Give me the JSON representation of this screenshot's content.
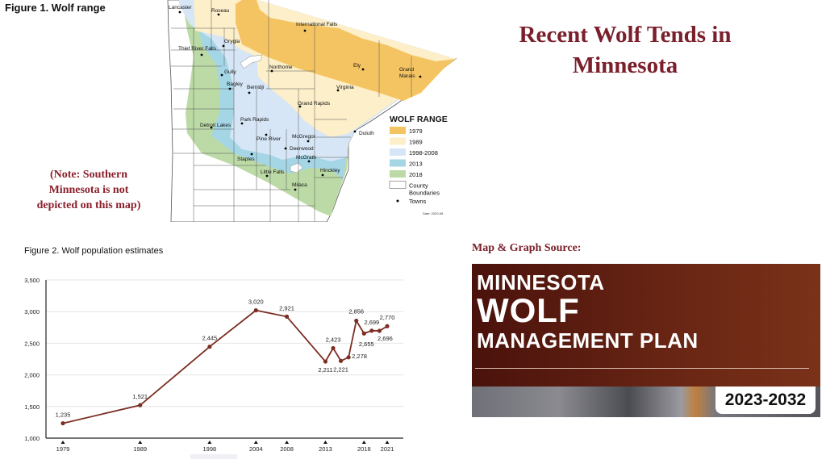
{
  "slide": {
    "title": "Recent Wolf Tends in Minnesota",
    "title_line1": "Recent Wolf Tends in",
    "title_line2": "Minnesota",
    "title_color": "#7a1f2b",
    "note_line1": "(Note: Southern",
    "note_line2": "Minnesota is not",
    "note_line3": "depicted on this map)",
    "source_label": "Map & Graph Source:"
  },
  "figure1": {
    "title": "Figure 1. Wolf range",
    "legend_title": "WOLF RANGE",
    "legend": [
      {
        "label": "1979",
        "color": "#f5c462"
      },
      {
        "label": "1989",
        "color": "#fcefc9"
      },
      {
        "label": "1998-2008",
        "color": "#d6e6f6"
      },
      {
        "label": "2013",
        "color": "#a4d6e6"
      },
      {
        "label": "2018",
        "color": "#bcdaa6"
      },
      {
        "label": "County",
        "label2": "Boundaries",
        "color": "#ffffff"
      },
      {
        "label": "Towns",
        "color": "#000000"
      }
    ],
    "date": "Date: 2020-08",
    "towns": [
      "Lancaster",
      "Roseau",
      "International Falls",
      "Grygla",
      "Thief River Falls",
      "Northome",
      "Ely",
      "Grand",
      "Gully",
      "Bagley",
      "Bemidji",
      "Virginia",
      "Grand Rapids",
      "Park Rapids",
      "Detroit Lakes",
      "Duluth",
      "Pine River",
      "McGregor",
      "Deerwood",
      "Staples",
      "McGrath",
      "Little Falls",
      "Hinckley",
      "Milaca"
    ],
    "town_extra": "Marais"
  },
  "chart_data": {
    "type": "line",
    "title": "Figure 2. Wolf population estimates",
    "xlabel": "",
    "ylabel": "",
    "x": [
      1979,
      1989,
      1998,
      2004,
      2008,
      2013,
      2014,
      2015,
      2016,
      2017,
      2018,
      2019,
      2020,
      2021
    ],
    "values": [
      1235,
      1521,
      2445,
      3020,
      2921,
      2211,
      2423,
      2221,
      2278,
      2856,
      2655,
      2699,
      2696,
      2770
    ],
    "labels": [
      "1,235",
      "1,521",
      "2,445",
      "3,020",
      "2,921",
      "2,211",
      "2,423",
      "2,221",
      "2,278",
      "2,856",
      "2,655",
      "2,699",
      "2,696",
      "2,770"
    ],
    "x_ticks": [
      "1979",
      "1989",
      "1998",
      "2004",
      "2008",
      "2013",
      "2018",
      "2021"
    ],
    "y_ticks": [
      "1,000",
      "1,500",
      "2,000",
      "2,500",
      "3,000",
      "3,500"
    ],
    "ylim": [
      1000,
      3500
    ],
    "grid": "horizontal",
    "line_color": "#7b2e22"
  },
  "cover": {
    "line1": "MINNESOTA",
    "line2": "WOLF",
    "line3": "MANAGEMENT PLAN",
    "years": "2023-2032"
  }
}
